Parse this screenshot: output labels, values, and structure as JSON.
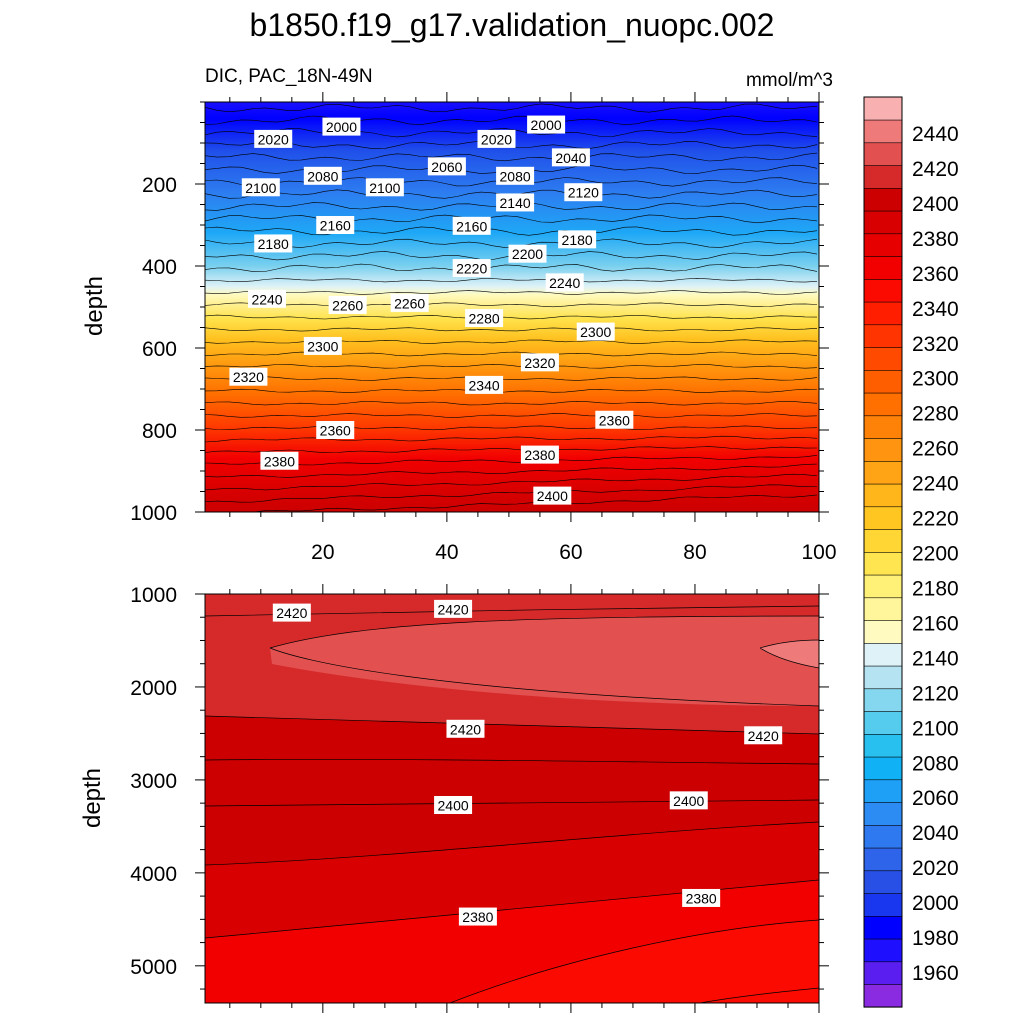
{
  "chart_data": {
    "type": "contour",
    "title": "b1850.f19_g17.validation_nuopc.002",
    "variable": "DIC, PAC_18N-49N",
    "units": "mmol/m^3",
    "x_ticks": [
      "20",
      "40",
      "60",
      "80",
      "100"
    ],
    "xlim": [
      1,
      100
    ],
    "colorbar": {
      "levels": [
        1960,
        1980,
        2000,
        2020,
        2040,
        2060,
        2080,
        2100,
        2120,
        2140,
        2160,
        2180,
        2200,
        2220,
        2240,
        2260,
        2280,
        2300,
        2320,
        2340,
        2360,
        2380,
        2400,
        2420,
        2440
      ],
      "labels": [
        "1960",
        "1980",
        "2000",
        "2020",
        "2040",
        "2060",
        "2080",
        "2100",
        "2120",
        "2140",
        "2160",
        "2180",
        "2200",
        "2220",
        "2240",
        "2260",
        "2280",
        "2300",
        "2320",
        "2340",
        "2360",
        "2380",
        "2400",
        "2420",
        "2440"
      ],
      "colors": [
        "#8a2be2",
        "#5a1ef0",
        "#1e10ff",
        "#0000ff",
        "#1a37f0",
        "#2850e6",
        "#2d64ea",
        "#2e78f0",
        "#2c8cf4",
        "#1ea0f7",
        "#10b2f5",
        "#28c0ef",
        "#55cbee",
        "#85d7f0",
        "#b5e3f2",
        "#dff2f7",
        "#fffac0",
        "#fff59a",
        "#fff078",
        "#ffe650",
        "#ffd634",
        "#ffc622",
        "#ffb61a",
        "#ffa414",
        "#ff9410",
        "#ff8208",
        "#ff7000",
        "#ff5e00",
        "#ff4a00",
        "#ff3400",
        "#ff1e00",
        "#fa0a00",
        "#f20000",
        "#e60000",
        "#d80000",
        "#cc0000",
        "#d62a2a",
        "#e35050",
        "#ee7a7a",
        "#f8b0b0"
      ]
    },
    "panels": [
      {
        "name": "upper",
        "ylabel": "depth",
        "ylim": [
          0,
          1000
        ],
        "y_ticks": [
          "200",
          "400",
          "600",
          "800",
          "1000"
        ],
        "contour_labels": [
          {
            "text": "2000",
            "x": 23,
            "y": 60
          },
          {
            "text": "2000",
            "x": 56,
            "y": 55
          },
          {
            "text": "2020",
            "x": 12,
            "y": 90
          },
          {
            "text": "2020",
            "x": 48,
            "y": 90
          },
          {
            "text": "2040",
            "x": 60,
            "y": 135
          },
          {
            "text": "2060",
            "x": 40,
            "y": 157
          },
          {
            "text": "2080",
            "x": 20,
            "y": 180
          },
          {
            "text": "2080",
            "x": 51,
            "y": 180
          },
          {
            "text": "2100",
            "x": 10,
            "y": 208
          },
          {
            "text": "2100",
            "x": 30,
            "y": 208
          },
          {
            "text": "2120",
            "x": 62,
            "y": 220
          },
          {
            "text": "2140",
            "x": 51,
            "y": 245
          },
          {
            "text": "2160",
            "x": 22,
            "y": 300
          },
          {
            "text": "2160",
            "x": 44,
            "y": 302
          },
          {
            "text": "2180",
            "x": 12,
            "y": 345
          },
          {
            "text": "2180",
            "x": 61,
            "y": 335
          },
          {
            "text": "2200",
            "x": 53,
            "y": 370
          },
          {
            "text": "2220",
            "x": 44,
            "y": 405
          },
          {
            "text": "2240",
            "x": 59,
            "y": 440
          },
          {
            "text": "2240",
            "x": 11,
            "y": 480
          },
          {
            "text": "2260",
            "x": 24,
            "y": 495
          },
          {
            "text": "2260",
            "x": 34,
            "y": 490
          },
          {
            "text": "2280",
            "x": 46,
            "y": 527
          },
          {
            "text": "2300",
            "x": 64,
            "y": 560
          },
          {
            "text": "2300",
            "x": 20,
            "y": 595
          },
          {
            "text": "2320",
            "x": 55,
            "y": 635
          },
          {
            "text": "2320",
            "x": 8,
            "y": 670
          },
          {
            "text": "2340",
            "x": 46,
            "y": 690
          },
          {
            "text": "2360",
            "x": 67,
            "y": 775
          },
          {
            "text": "2360",
            "x": 22,
            "y": 800
          },
          {
            "text": "2380",
            "x": 55,
            "y": 860
          },
          {
            "text": "2380",
            "x": 13,
            "y": 875
          },
          {
            "text": "2400",
            "x": 57,
            "y": 960
          }
        ]
      },
      {
        "name": "lower",
        "ylabel": "depth",
        "ylim": [
          1000,
          5400
        ],
        "y_ticks": [
          "1000",
          "2000",
          "3000",
          "4000",
          "5000"
        ],
        "contour_labels": [
          {
            "text": "2420",
            "x": 15,
            "y": 1200
          },
          {
            "text": "2420",
            "x": 41,
            "y": 1160
          },
          {
            "text": "2420",
            "x": 43,
            "y": 2450
          },
          {
            "text": "2420",
            "x": 91,
            "y": 2520
          },
          {
            "text": "2400",
            "x": 41,
            "y": 3270
          },
          {
            "text": "2400",
            "x": 79,
            "y": 3220
          },
          {
            "text": "2380",
            "x": 45,
            "y": 4470
          },
          {
            "text": "2380",
            "x": 81,
            "y": 4270
          }
        ]
      }
    ]
  }
}
